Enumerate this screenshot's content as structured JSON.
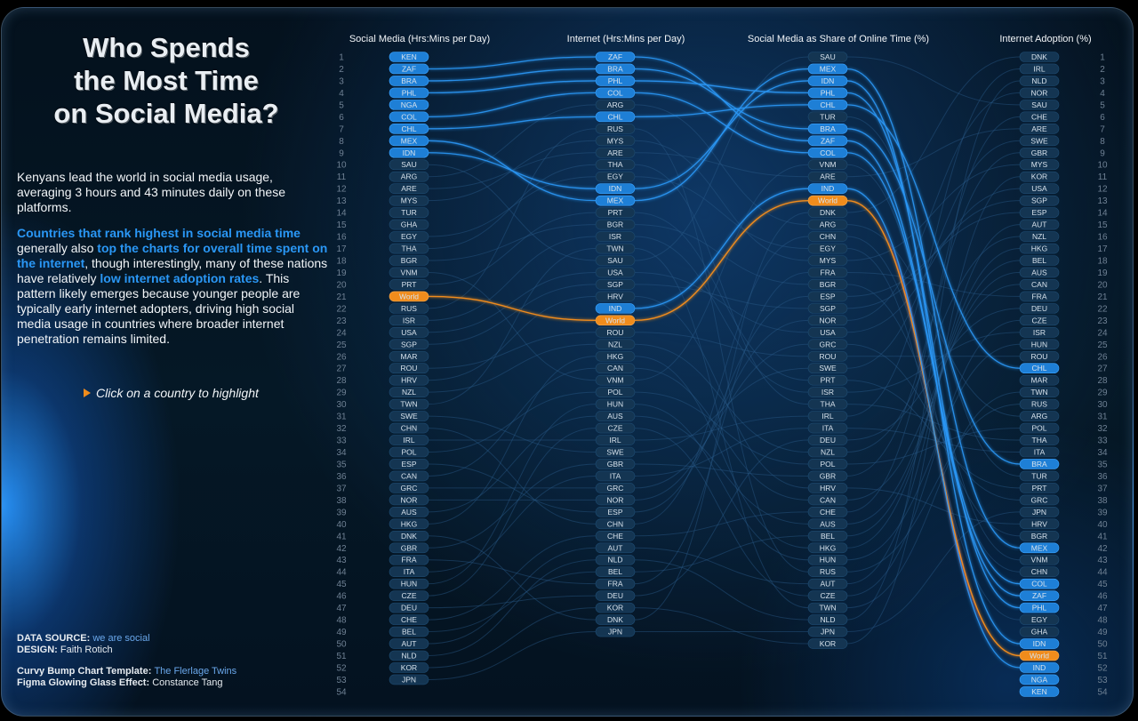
{
  "title_lines": [
    "Who Spends",
    "the Most Time",
    "on Social Media?"
  ],
  "intro": "Kenyans lead the world in social media usage, averaging 3 hours and 43 minutes daily on these platforms.",
  "body": {
    "hl1": "Countries that rank highest in social media time",
    "t1": " generally also ",
    "hl2": "top the charts for overall time spent on the internet",
    "t2": ", though interestingly, many of these nations have relatively ",
    "hl3": "low internet adoption rates",
    "t3": ". This pattern likely emerges because younger people are typically early internet adopters, driving high social media usage in countries where broader internet penetration remains limited."
  },
  "hint": "Click on a country to highlight",
  "credits": {
    "source_label": "DATA SOURCE: ",
    "source_value": "we are social",
    "design_label": "DESIGN: ",
    "design_value": "Faith Rotich",
    "template_label": "Curvy Bump Chart Template: ",
    "template_value": "The Flerlage Twins",
    "effect_label": "Figma Glowing Glass Effect: ",
    "effect_value": "Constance Tang"
  },
  "colors": {
    "highlight_blue": "#2a97f5",
    "world_orange": "#f08c1c",
    "pill_default": "#143552",
    "top_pill": "#1e7fd6",
    "line_dim": "#2a5a8a"
  },
  "chart_data": {
    "type": "bump",
    "rank_max": 54,
    "columns": [
      "Social Media (Hrs:Mins per Day)",
      "Internet (Hrs:Mins per Day)",
      "Social Media as Share of Online Time (%)",
      "Internet Adoption (%)"
    ],
    "rankings": [
      [
        "KEN",
        "ZAF",
        "BRA",
        "PHL",
        "NGA",
        "COL",
        "CHL",
        "MEX",
        "IDN",
        "SAU",
        "ARG",
        "ARE",
        "MYS",
        "TUR",
        "GHA",
        "EGY",
        "THA",
        "BGR",
        "VNM",
        "PRT",
        "World",
        "RUS",
        "ISR",
        "USA",
        "SGP",
        "MAR",
        "ROU",
        "HRV",
        "NZL",
        "TWN",
        "SWE",
        "CHN",
        "IRL",
        "POL",
        "ESP",
        "CAN",
        "GRC",
        "NOR",
        "AUS",
        "HKG",
        "DNK",
        "GBR",
        "FRA",
        "ITA",
        "HUN",
        "CZE",
        "DEU",
        "CHE",
        "BEL",
        "AUT",
        "NLD",
        "KOR",
        "JPN"
      ],
      [
        "ZAF",
        "BRA",
        "PHL",
        "COL",
        "ARG",
        "CHL",
        "RUS",
        "MYS",
        "ARE",
        "THA",
        "EGY",
        "IDN",
        "MEX",
        "PRT",
        "BGR",
        "ISR",
        "TWN",
        "SAU",
        "USA",
        "SGP",
        "HRV",
        "IND",
        "World",
        "ROU",
        "NZL",
        "HKG",
        "CAN",
        "VNM",
        "POL",
        "HUN",
        "AUS",
        "CZE",
        "IRL",
        "SWE",
        "GBR",
        "ITA",
        "GRC",
        "NOR",
        "ESP",
        "CHN",
        "CHE",
        "AUT",
        "NLD",
        "BEL",
        "FRA",
        "DEU",
        "KOR",
        "DNK",
        "JPN"
      ],
      [
        "SAU",
        "MEX",
        "IDN",
        "PHL",
        "CHL",
        "TUR",
        "BRA",
        "ZAF",
        "COL",
        "VNM",
        "ARE",
        "IND",
        "World",
        "DNK",
        "ARG",
        "CHN",
        "EGY",
        "MYS",
        "FRA",
        "BGR",
        "ESP",
        "SGP",
        "NOR",
        "USA",
        "GRC",
        "ROU",
        "SWE",
        "PRT",
        "ISR",
        "THA",
        "IRL",
        "ITA",
        "DEU",
        "NZL",
        "POL",
        "GBR",
        "HRV",
        "CAN",
        "CHE",
        "AUS",
        "BEL",
        "HKG",
        "HUN",
        "RUS",
        "AUT",
        "CZE",
        "TWN",
        "NLD",
        "JPN",
        "KOR"
      ],
      [
        "DNK",
        "IRL",
        "NLD",
        "NOR",
        "SAU",
        "CHE",
        "ARE",
        "SWE",
        "GBR",
        "MYS",
        "KOR",
        "USA",
        "SGP",
        "ESP",
        "AUT",
        "NZL",
        "HKG",
        "BEL",
        "AUS",
        "CAN",
        "FRA",
        "DEU",
        "CZE",
        "ISR",
        "HUN",
        "ROU",
        "CHL",
        "MAR",
        "TWN",
        "RUS",
        "ARG",
        "POL",
        "THA",
        "ITA",
        "BRA",
        "TUR",
        "PRT",
        "GRC",
        "JPN",
        "HRV",
        "BGR",
        "MEX",
        "VNM",
        "CHN",
        "COL",
        "ZAF",
        "PHL",
        "EGY",
        "GHA",
        "IDN",
        "World",
        "IND",
        "NGA",
        "KEN"
      ]
    ],
    "highlighted": [
      "KEN",
      "ZAF",
      "BRA",
      "PHL",
      "NGA",
      "COL",
      "CHL",
      "MEX",
      "IDN",
      "IND"
    ],
    "world": "World"
  }
}
